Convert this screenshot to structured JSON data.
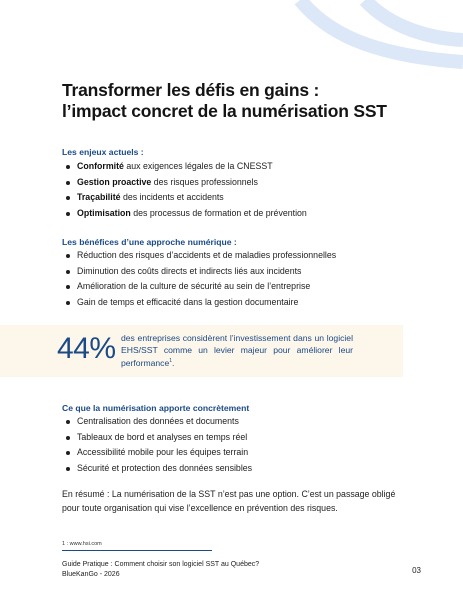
{
  "title": {
    "line1": "Transformer les défis en gains :",
    "line2": "l’impact concret de la numérisation SST"
  },
  "section_enjeux": {
    "heading": "Les enjeux actuels :",
    "items": [
      {
        "bold": "Conformité",
        "rest": " aux exigences légales de la CNESST"
      },
      {
        "bold": "Gestion proactive",
        "rest": " des risques professionnels"
      },
      {
        "bold": "Traçabilité",
        "rest": " des incidents et accidents"
      },
      {
        "bold": "Optimisation",
        "rest": " des processus de formation et de prévention"
      }
    ]
  },
  "section_benefices": {
    "heading": "Les bénéfices d’une approche numérique :",
    "items": [
      "Réduction des risques d’accidents et de maladies professionnelles",
      "Diminution des coûts directs et indirects liés aux incidents",
      "Amélioration de la culture de sécurité au sein de l’entreprise",
      "Gain de temps et efficacité dans la gestion documentaire"
    ]
  },
  "stat": {
    "number": "44%",
    "text": "des entreprises considèrent l’investissement dans un logiciel EHS/SST comme un levier majeur pour améliorer leur performance",
    "footnote_ref": "1",
    "text_end": "."
  },
  "section_concret": {
    "heading": "Ce que la numérisation apporte concrètement",
    "items": [
      "Centralisation des données et documents",
      "Tableaux de bord et analyses en temps réel",
      "Accessibilité mobile pour les équipes terrain",
      "Sécurité et protection des données sensibles"
    ]
  },
  "summary": "En résumé : La numérisation de la SST n’est pas une option. C’est un passage obligé pour toute organisation qui vise l’excellence en prévention des risques.",
  "footnote": "1 : www.hsi.com",
  "footer": {
    "line1": "Guide Pratique : Comment choisir son logiciel SST au Québec?",
    "line2": "BlueKanGo - 2026",
    "page": "03"
  },
  "colors": {
    "accent": "#1b4a86",
    "decor": "#dce7f7",
    "band": "#fdf6ea"
  }
}
